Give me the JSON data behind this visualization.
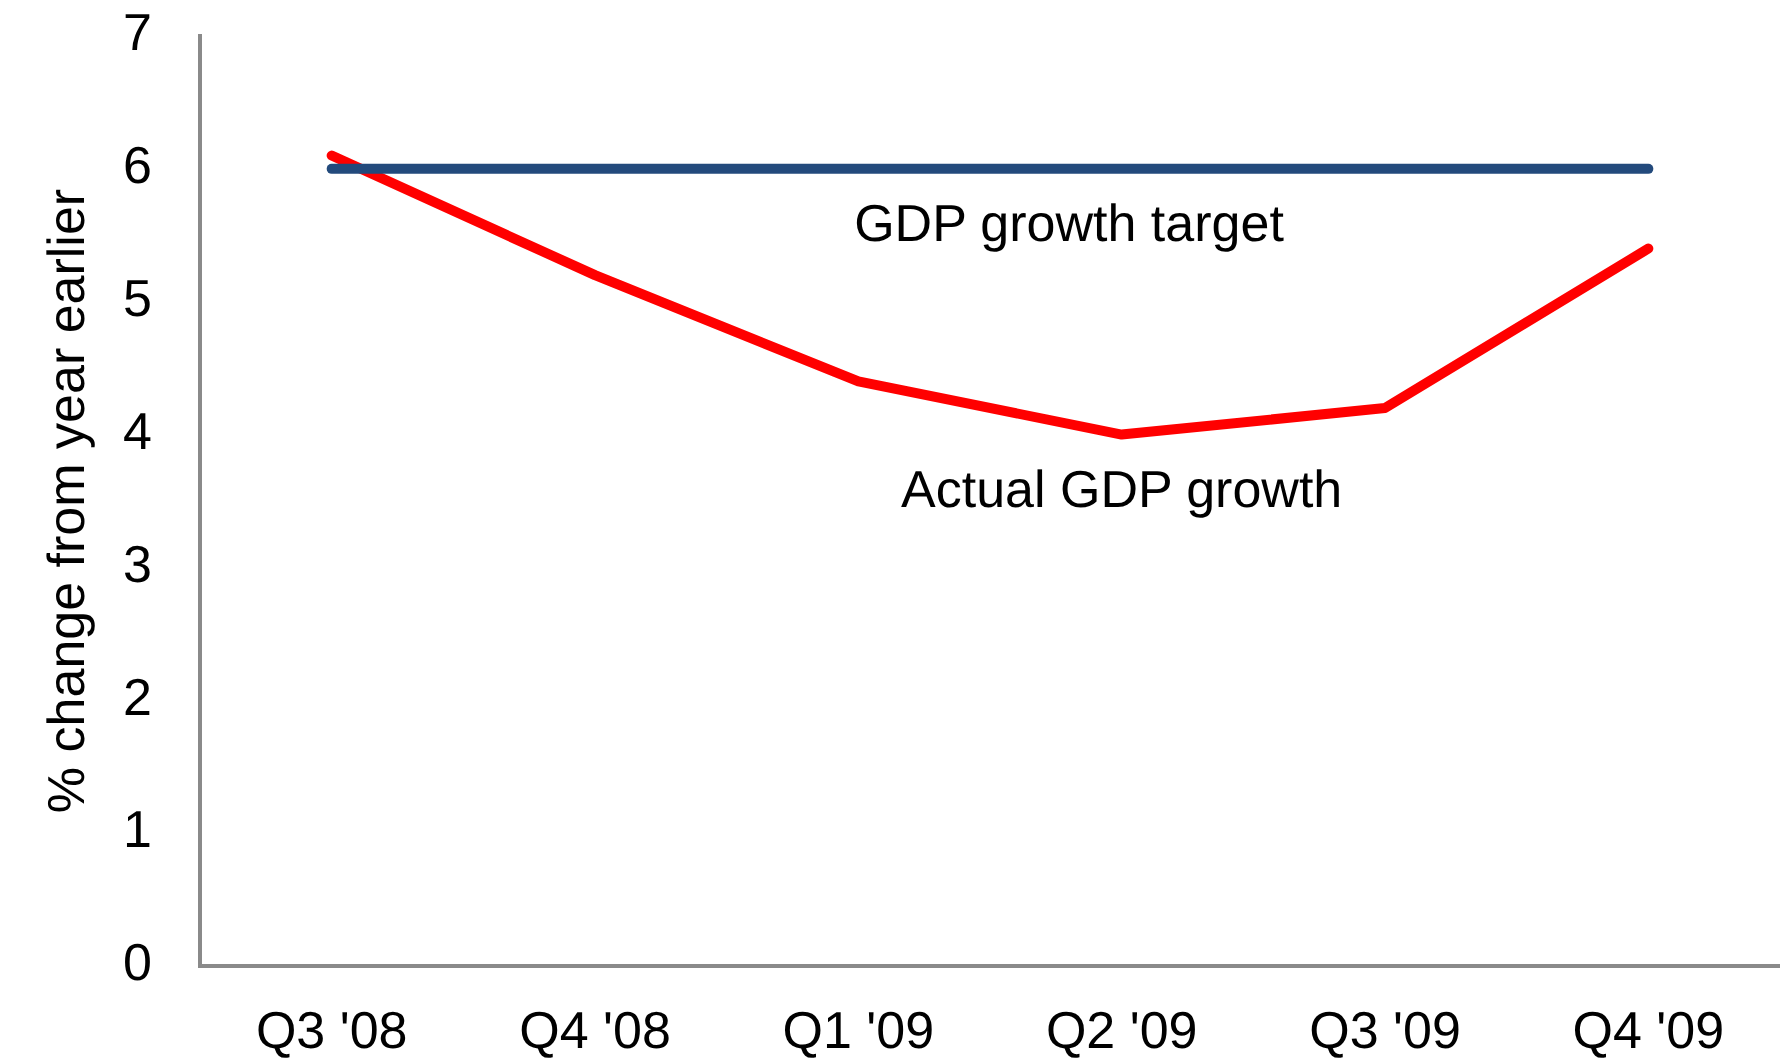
{
  "chart_data": {
    "type": "line",
    "ylabel": "% change from year earlier",
    "categories": [
      "Q3 '08",
      "Q4 '08",
      "Q1 '09",
      "Q2 '09",
      "Q3 '09",
      "Q4 '09"
    ],
    "series": [
      {
        "name": "GDP growth target",
        "color": "#234a7c",
        "values": [
          6,
          6,
          6,
          6,
          6,
          6
        ]
      },
      {
        "name": "Actual GDP growth",
        "color": "#ff0000",
        "values": [
          6.1,
          5.2,
          4.4,
          4.0,
          4.2,
          5.4
        ]
      }
    ],
    "ylim": [
      0,
      7
    ],
    "yticks": [
      0,
      1,
      2,
      3,
      4,
      5,
      6,
      7
    ],
    "grid": false,
    "legend": false,
    "marker": "none",
    "line_style": "solid"
  }
}
